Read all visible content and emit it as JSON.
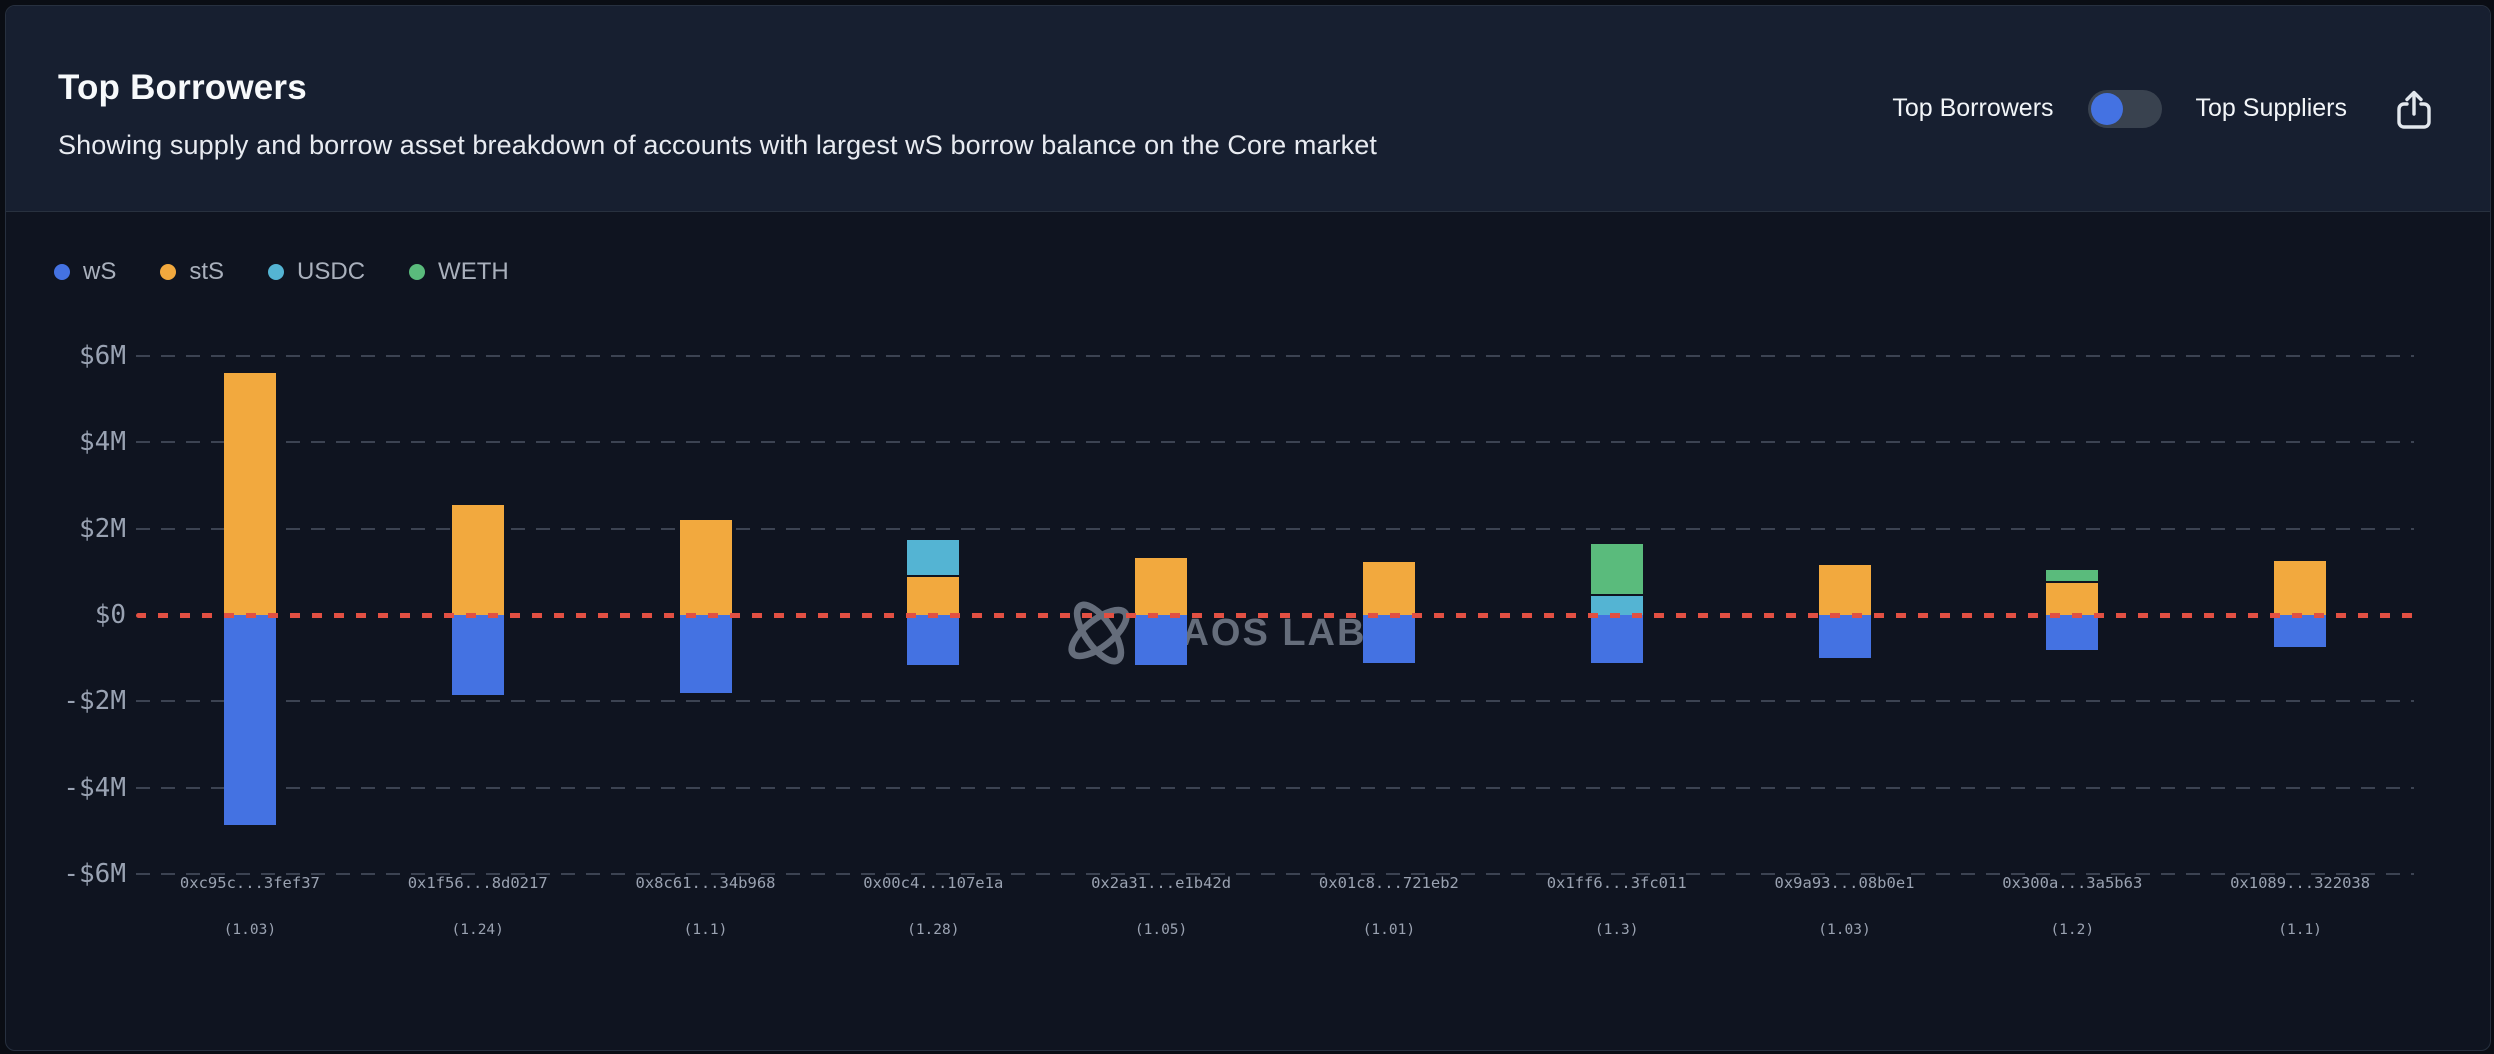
{
  "header": {
    "title": "Top Borrowers",
    "subtitle": "Showing supply and borrow asset breakdown of accounts with largest wS borrow balance on the Core market",
    "view_toggle": {
      "left_label": "Top Borrowers",
      "right_label": "Top Suppliers",
      "selected": "Top Borrowers",
      "knob_color": "#4472e2",
      "track_color": "#39424f"
    },
    "share_icon": "share-export-icon"
  },
  "watermark": {
    "icon": "chaos-labs-orbit-icon",
    "text": "HAOS LABS",
    "color": "#6a7280"
  },
  "chart_data": {
    "type": "bar",
    "stacked": true,
    "unit": "USD millions",
    "market": "Core",
    "ylim": [
      -6,
      6
    ],
    "grid": true,
    "grid_color": "#3c4352",
    "zero_line_color": "#e25043",
    "legend_position": "top-left",
    "yticks": [
      {
        "value": 6,
        "label": "$6M"
      },
      {
        "value": 4,
        "label": "$4M"
      },
      {
        "value": 2,
        "label": "$2M"
      },
      {
        "value": 0,
        "label": "$0"
      },
      {
        "value": -2,
        "label": "-$2M"
      },
      {
        "value": -4,
        "label": "-$4M"
      },
      {
        "value": -6,
        "label": "-$6M"
      }
    ],
    "legend": [
      {
        "name": "wS",
        "color": "#4472e2"
      },
      {
        "name": "stS",
        "color": "#f2a93e"
      },
      {
        "name": "USDC",
        "color": "#54b4d3"
      },
      {
        "name": "WETH",
        "color": "#5abb7c"
      }
    ],
    "bars": [
      {
        "address": "0xc95c...3fef37",
        "health_factor": "(1.03)",
        "segments": [
          {
            "asset": "stS",
            "value": 5.6
          },
          {
            "asset": "wS",
            "value": -4.85
          }
        ]
      },
      {
        "address": "0x1f56...8d0217",
        "health_factor": "(1.24)",
        "segments": [
          {
            "asset": "stS",
            "value": 2.55
          },
          {
            "asset": "wS",
            "value": -1.85
          }
        ]
      },
      {
        "address": "0x8c61...34b968",
        "health_factor": "(1.1)",
        "segments": [
          {
            "asset": "stS",
            "value": 2.2
          },
          {
            "asset": "wS",
            "value": -1.8
          }
        ]
      },
      {
        "address": "0x00c4...107e1a",
        "health_factor": "(1.28)",
        "segments": [
          {
            "asset": "stS",
            "value": 0.88
          },
          {
            "asset": "USDC",
            "value": 0.86
          },
          {
            "asset": "wS",
            "value": -1.15
          }
        ]
      },
      {
        "address": "0x2a31...e1b42d",
        "health_factor": "(1.05)",
        "segments": [
          {
            "asset": "stS",
            "value": 1.33
          },
          {
            "asset": "wS",
            "value": -1.15
          }
        ]
      },
      {
        "address": "0x01c8...721eb2",
        "health_factor": "(1.01)",
        "segments": [
          {
            "asset": "stS",
            "value": 1.22
          },
          {
            "asset": "wS",
            "value": -1.12
          }
        ]
      },
      {
        "address": "0x1ff6...3fc011",
        "health_factor": "(1.3)",
        "segments": [
          {
            "asset": "USDC",
            "value": 0.44
          },
          {
            "asset": "WETH",
            "value": 1.21
          },
          {
            "asset": "wS",
            "value": -1.1
          }
        ]
      },
      {
        "address": "0x9a93...08b0e1",
        "health_factor": "(1.03)",
        "segments": [
          {
            "asset": "stS",
            "value": 1.15
          },
          {
            "asset": "wS",
            "value": -1.0
          }
        ]
      },
      {
        "address": "0x300a...3a5b63",
        "health_factor": "(1.2)",
        "segments": [
          {
            "asset": "stS",
            "value": 0.75
          },
          {
            "asset": "WETH",
            "value": 0.3
          },
          {
            "asset": "wS",
            "value": -0.8
          }
        ]
      },
      {
        "address": "0x1089...322038",
        "health_factor": "(1.1)",
        "segments": [
          {
            "asset": "stS",
            "value": 1.25
          },
          {
            "asset": "wS",
            "value": -0.75
          }
        ]
      }
    ]
  }
}
